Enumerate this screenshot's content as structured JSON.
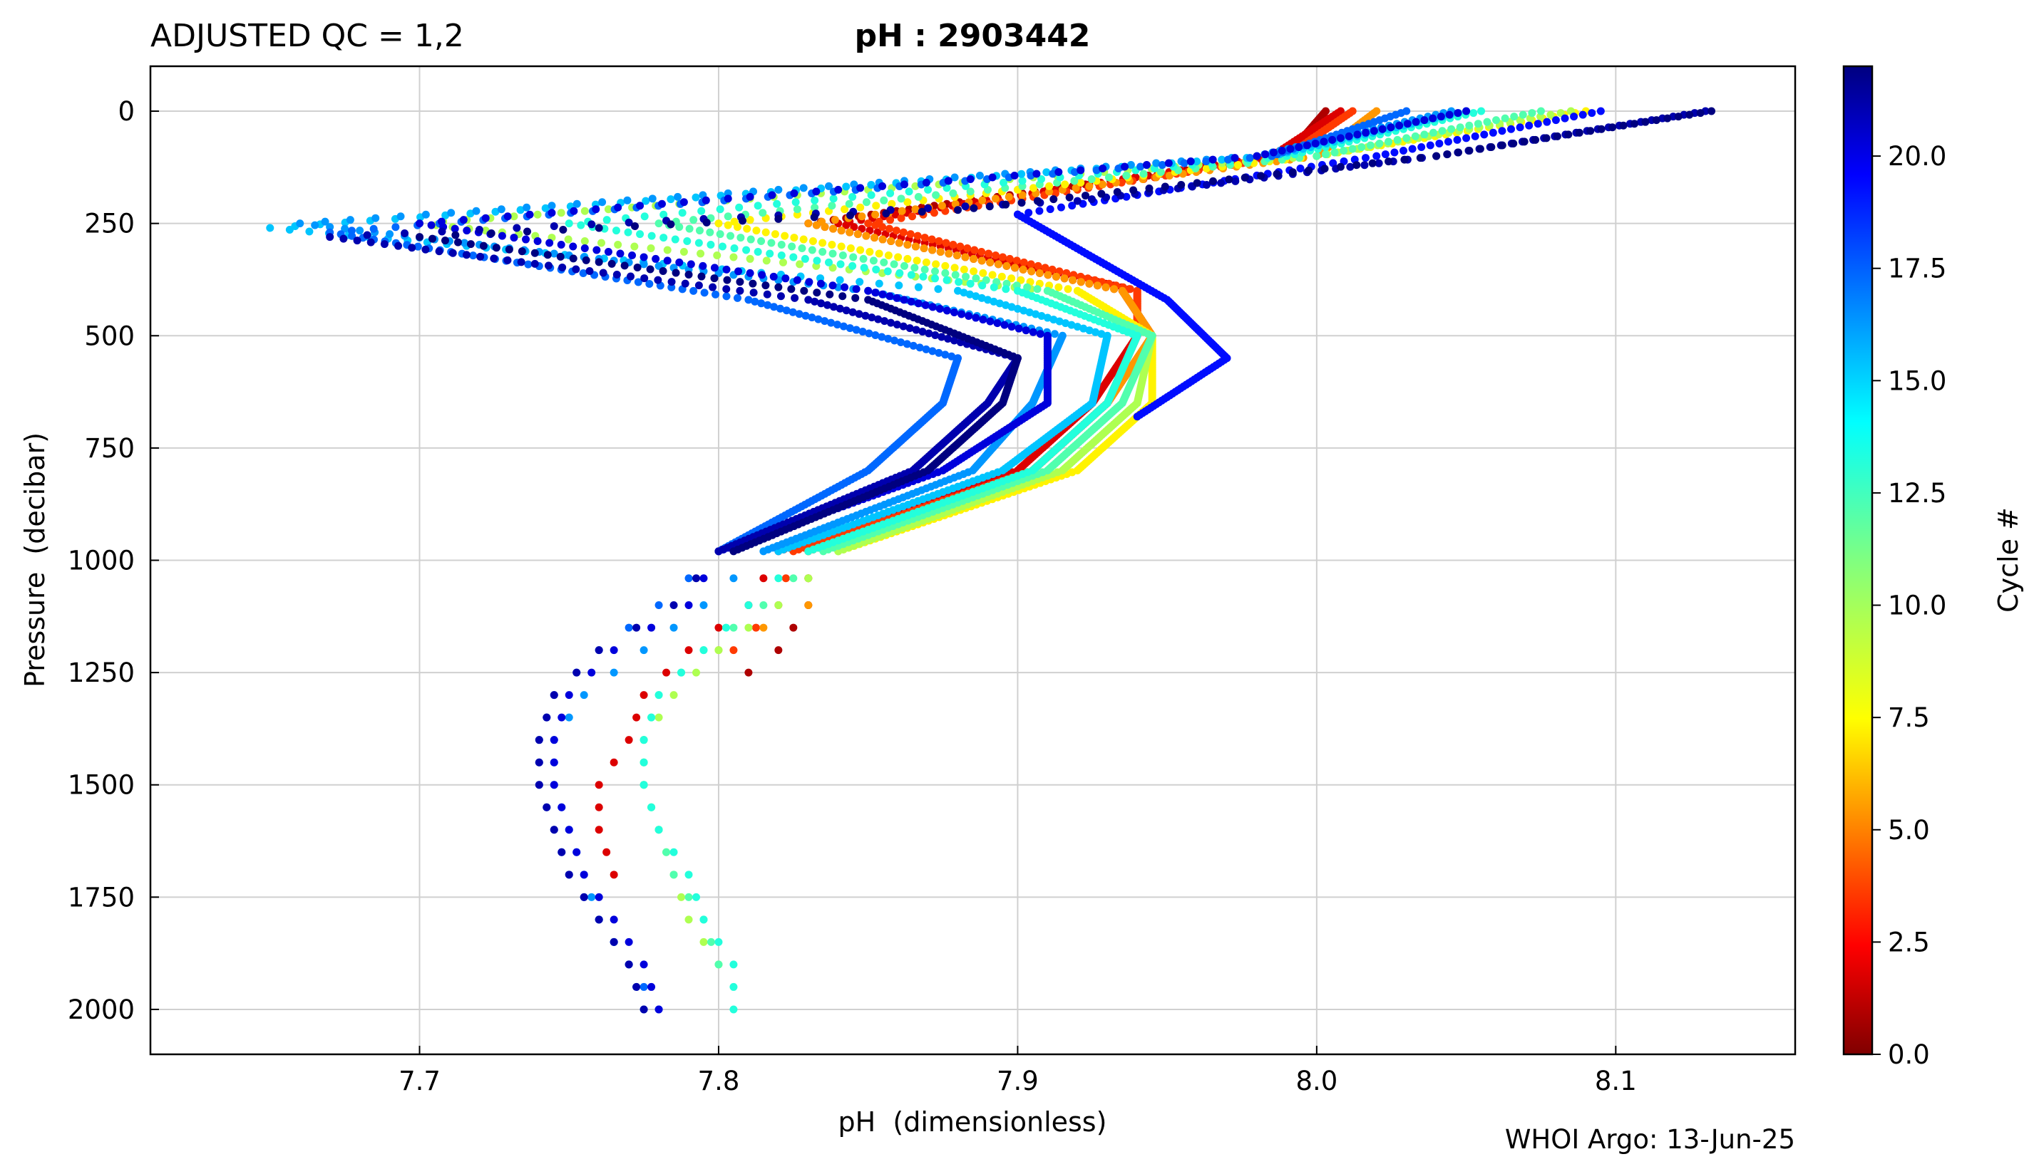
{
  "header": {
    "qc_label": "ADJUSTED QC = 1,2",
    "title": "pH : 2903442"
  },
  "footer": {
    "source": "WHOI Argo: 13-Jun-25"
  },
  "chart_data": {
    "type": "scatter",
    "xlabel": "pH  (dimensionless)",
    "ylabel": "Pressure  (decibar)",
    "xlim": [
      7.61,
      8.16
    ],
    "ylim": [
      2100,
      -100
    ],
    "y_inverted": true,
    "grid": true,
    "x_ticks": [
      7.7,
      7.8,
      7.9,
      8.0,
      8.1
    ],
    "x_tick_labels": [
      "7.7",
      "7.8",
      "7.9",
      "8.0",
      "8.1"
    ],
    "y_ticks": [
      0,
      250,
      500,
      750,
      1000,
      1250,
      1500,
      1750,
      2000
    ],
    "y_tick_labels": [
      "0",
      "250",
      "500",
      "750",
      "1000",
      "1250",
      "1500",
      "1750",
      "2000"
    ],
    "colorbar": {
      "label": "Cycle #",
      "colormap": "jet",
      "range": [
        0,
        22
      ],
      "ticks": [
        0,
        2.5,
        5,
        7.5,
        10,
        12.5,
        15,
        17.5,
        20
      ],
      "tick_labels": [
        "0.0",
        "2.5",
        "5.0",
        "7.5",
        "10.0",
        "12.5",
        "15.0",
        "17.5",
        "20.0"
      ]
    },
    "series": [
      {
        "cycle": 1,
        "points": [
          [
            8.003,
            0
          ],
          [
            7.99,
            100
          ],
          [
            7.83,
            250
          ],
          [
            7.935,
            400
          ],
          [
            7.945,
            500
          ],
          [
            7.93,
            650
          ],
          [
            7.905,
            800
          ],
          [
            7.83,
            980
          ],
          [
            7.83,
            1100
          ],
          [
            7.82,
            1200
          ],
          [
            7.81,
            1250
          ]
        ]
      },
      {
        "cycle": 2,
        "points": [
          [
            8.008,
            0
          ],
          [
            7.985,
            100
          ],
          [
            7.84,
            250
          ],
          [
            7.94,
            400
          ],
          [
            7.94,
            500
          ],
          [
            7.925,
            650
          ],
          [
            7.9,
            800
          ],
          [
            7.82,
            980
          ],
          [
            7.81,
            1100
          ],
          [
            7.79,
            1200
          ],
          [
            7.775,
            1300
          ],
          [
            7.77,
            1400
          ],
          [
            7.76,
            1500
          ],
          [
            7.76,
            1600
          ],
          [
            7.765,
            1700
          ]
        ]
      },
      {
        "cycle": 4,
        "points": [
          [
            8.012,
            0
          ],
          [
            7.99,
            100
          ],
          [
            7.85,
            250
          ],
          [
            7.94,
            400
          ],
          [
            7.94,
            500
          ],
          [
            7.93,
            650
          ],
          [
            7.905,
            800
          ],
          [
            7.825,
            980
          ],
          [
            7.82,
            1100
          ],
          [
            7.805,
            1200
          ]
        ]
      },
      {
        "cycle": 6,
        "points": [
          [
            8.02,
            0
          ],
          [
            8.0,
            100
          ],
          [
            7.83,
            250
          ],
          [
            7.935,
            400
          ],
          [
            7.945,
            500
          ],
          [
            7.93,
            650
          ],
          [
            7.905,
            800
          ],
          [
            7.83,
            980
          ],
          [
            7.83,
            1100
          ],
          [
            7.8,
            1200
          ]
        ]
      },
      {
        "cycle": 8,
        "points": [
          [
            8.09,
            0
          ],
          [
            8.0,
            100
          ],
          [
            7.8,
            250
          ],
          [
            7.92,
            400
          ],
          [
            7.945,
            500
          ],
          [
            7.945,
            650
          ],
          [
            7.92,
            800
          ],
          [
            7.84,
            980
          ]
        ]
      },
      {
        "cycle": 10,
        "points": [
          [
            8.085,
            0
          ],
          [
            8.0,
            100
          ],
          [
            7.7,
            250
          ],
          [
            7.91,
            400
          ],
          [
            7.945,
            500
          ],
          [
            7.94,
            650
          ],
          [
            7.915,
            800
          ],
          [
            7.84,
            980
          ],
          [
            7.82,
            1100
          ],
          [
            7.8,
            1200
          ],
          [
            7.785,
            1300
          ],
          [
            7.775,
            1400
          ],
          [
            7.775,
            1500
          ],
          [
            7.78,
            1600
          ],
          [
            7.785,
            1700
          ],
          [
            7.79,
            1800
          ],
          [
            7.8,
            1900
          ]
        ]
      },
      {
        "cycle": 12,
        "points": [
          [
            8.075,
            0
          ],
          [
            8.0,
            100
          ],
          [
            7.78,
            250
          ],
          [
            7.91,
            400
          ],
          [
            7.945,
            500
          ],
          [
            7.935,
            650
          ],
          [
            7.91,
            800
          ],
          [
            7.835,
            980
          ],
          [
            7.815,
            1100
          ],
          [
            7.795,
            1200
          ],
          [
            7.78,
            1300
          ],
          [
            7.775,
            1400
          ],
          [
            7.775,
            1500
          ],
          [
            7.78,
            1600
          ],
          [
            7.785,
            1700
          ],
          [
            7.795,
            1800
          ],
          [
            7.8,
            1900
          ]
        ]
      },
      {
        "cycle": 13,
        "points": [
          [
            8.055,
            0
          ],
          [
            7.99,
            100
          ],
          [
            7.75,
            250
          ],
          [
            7.9,
            400
          ],
          [
            7.94,
            500
          ],
          [
            7.93,
            650
          ],
          [
            7.905,
            800
          ],
          [
            7.83,
            980
          ],
          [
            7.81,
            1100
          ],
          [
            7.795,
            1200
          ],
          [
            7.78,
            1300
          ],
          [
            7.775,
            1400
          ],
          [
            7.775,
            1500
          ],
          [
            7.78,
            1600
          ],
          [
            7.79,
            1700
          ],
          [
            7.795,
            1800
          ],
          [
            7.805,
            1900
          ],
          [
            7.805,
            2000
          ]
        ]
      },
      {
        "cycle": 15,
        "points": [
          [
            8.05,
            0
          ],
          [
            7.985,
            100
          ],
          [
            7.65,
            260
          ],
          [
            7.88,
            400
          ],
          [
            7.93,
            500
          ],
          [
            7.925,
            650
          ],
          [
            7.895,
            800
          ],
          [
            7.82,
            980
          ]
        ]
      },
      {
        "cycle": 16,
        "points": [
          [
            8.045,
            0
          ],
          [
            7.98,
            100
          ],
          [
            7.66,
            250
          ],
          [
            7.85,
            400
          ],
          [
            7.915,
            500
          ],
          [
            7.905,
            650
          ],
          [
            7.885,
            800
          ],
          [
            7.815,
            980
          ],
          [
            7.795,
            1100
          ],
          [
            7.775,
            1200
          ],
          [
            7.755,
            1300
          ],
          [
            7.745,
            1400
          ],
          [
            7.745,
            1500
          ],
          [
            7.75,
            1600
          ],
          [
            7.755,
            1700
          ],
          [
            7.76,
            1800
          ],
          [
            7.77,
            1900
          ],
          [
            7.775,
            2000
          ]
        ]
      },
      {
        "cycle": 17,
        "points": [
          [
            8.03,
            0
          ],
          [
            7.985,
            100
          ],
          [
            7.67,
            270
          ],
          [
            7.81,
            420
          ],
          [
            7.88,
            550
          ],
          [
            7.875,
            650
          ],
          [
            7.85,
            800
          ],
          [
            7.8,
            980
          ],
          [
            7.78,
            1100
          ],
          [
            7.76,
            1200
          ],
          [
            7.745,
            1300
          ],
          [
            7.74,
            1400
          ],
          [
            7.74,
            1500
          ],
          [
            7.745,
            1600
          ],
          [
            7.75,
            1700
          ],
          [
            7.76,
            1800
          ],
          [
            7.77,
            1900
          ],
          [
            7.78,
            2000
          ]
        ]
      },
      {
        "cycle": 19,
        "points": [
          [
            8.095,
            0
          ],
          [
            8.02,
            100
          ],
          [
            7.9,
            230
          ],
          [
            7.95,
            420
          ],
          [
            7.97,
            550
          ],
          [
            7.94,
            680
          ]
        ]
      },
      {
        "cycle": 20,
        "points": [
          [
            8.05,
            0
          ],
          [
            7.98,
            100
          ],
          [
            7.7,
            250
          ],
          [
            7.85,
            400
          ],
          [
            7.91,
            500
          ],
          [
            7.91,
            650
          ],
          [
            7.875,
            800
          ],
          [
            7.8,
            980
          ],
          [
            7.79,
            1100
          ],
          [
            7.765,
            1200
          ],
          [
            7.75,
            1300
          ],
          [
            7.745,
            1400
          ],
          [
            7.745,
            1500
          ],
          [
            7.75,
            1600
          ],
          [
            7.755,
            1700
          ],
          [
            7.765,
            1800
          ],
          [
            7.775,
            1900
          ],
          [
            7.78,
            2000
          ]
        ]
      },
      {
        "cycle": 21,
        "points": [
          [
            8.13,
            0
          ],
          [
            8.04,
            100
          ],
          [
            7.92,
            200
          ],
          [
            7.67,
            280
          ],
          [
            7.83,
            420
          ],
          [
            7.9,
            550
          ],
          [
            7.89,
            650
          ],
          [
            7.865,
            800
          ],
          [
            7.8,
            980
          ],
          [
            7.785,
            1100
          ],
          [
            7.76,
            1200
          ],
          [
            7.745,
            1300
          ],
          [
            7.74,
            1400
          ],
          [
            7.74,
            1500
          ],
          [
            7.745,
            1600
          ],
          [
            7.75,
            1700
          ],
          [
            7.76,
            1800
          ],
          [
            7.77,
            1900
          ],
          [
            7.775,
            2000
          ]
        ]
      },
      {
        "cycle": 22,
        "points": [
          [
            8.132,
            0
          ],
          [
            8.04,
            100
          ],
          [
            7.88,
            220
          ],
          [
            7.7,
            280
          ],
          [
            7.85,
            420
          ],
          [
            7.9,
            550
          ],
          [
            7.895,
            650
          ],
          [
            7.87,
            800
          ],
          [
            7.805,
            980
          ]
        ]
      }
    ]
  }
}
